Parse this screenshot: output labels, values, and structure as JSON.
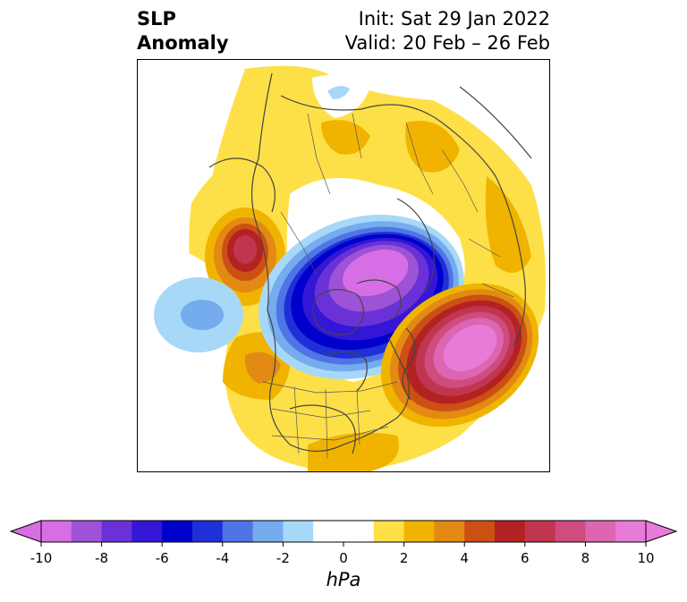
{
  "title": {
    "left_line1": "SLP",
    "left_line2": "Anomaly",
    "right_line1": "Init: Sat 29 Jan 2022",
    "right_line2": "Valid: 20 Feb – 26 Feb"
  },
  "colorbar": {
    "unit": "hPa",
    "ticks": [
      "-10",
      "-8",
      "-6",
      "-4",
      "-2",
      "0",
      "2",
      "4",
      "6",
      "8",
      "10"
    ],
    "tick_values": [
      -10,
      -8,
      -6,
      -4,
      -2,
      0,
      2,
      4,
      6,
      8,
      10
    ],
    "range": [
      -10,
      10
    ],
    "colors": [
      "#d86ee6",
      "#9e52d6",
      "#6a32d6",
      "#3416d6",
      "#0000cc",
      "#2030d8",
      "#4f74e6",
      "#74acee",
      "#a8d8f8",
      "#ffffff",
      "#ffffff",
      "#fde047",
      "#f0b400",
      "#e28a14",
      "#cc5014",
      "#b32222",
      "#c03650",
      "#cf4c7e",
      "#dc66b2",
      "#e87ad8"
    ],
    "extend": "both"
  },
  "map": {
    "projection": "north-polar-stereographic",
    "features": [
      {
        "name": "positive-anomaly-north-atlantic",
        "peak_hPa": 10
      },
      {
        "name": "negative-anomaly-arctic-canada",
        "peak_hPa": -10
      },
      {
        "name": "positive-anomaly-gulf-of-alaska",
        "peak_hPa": 8
      },
      {
        "name": "negative-anomaly-north-pacific",
        "peak_hPa": -4
      }
    ]
  }
}
